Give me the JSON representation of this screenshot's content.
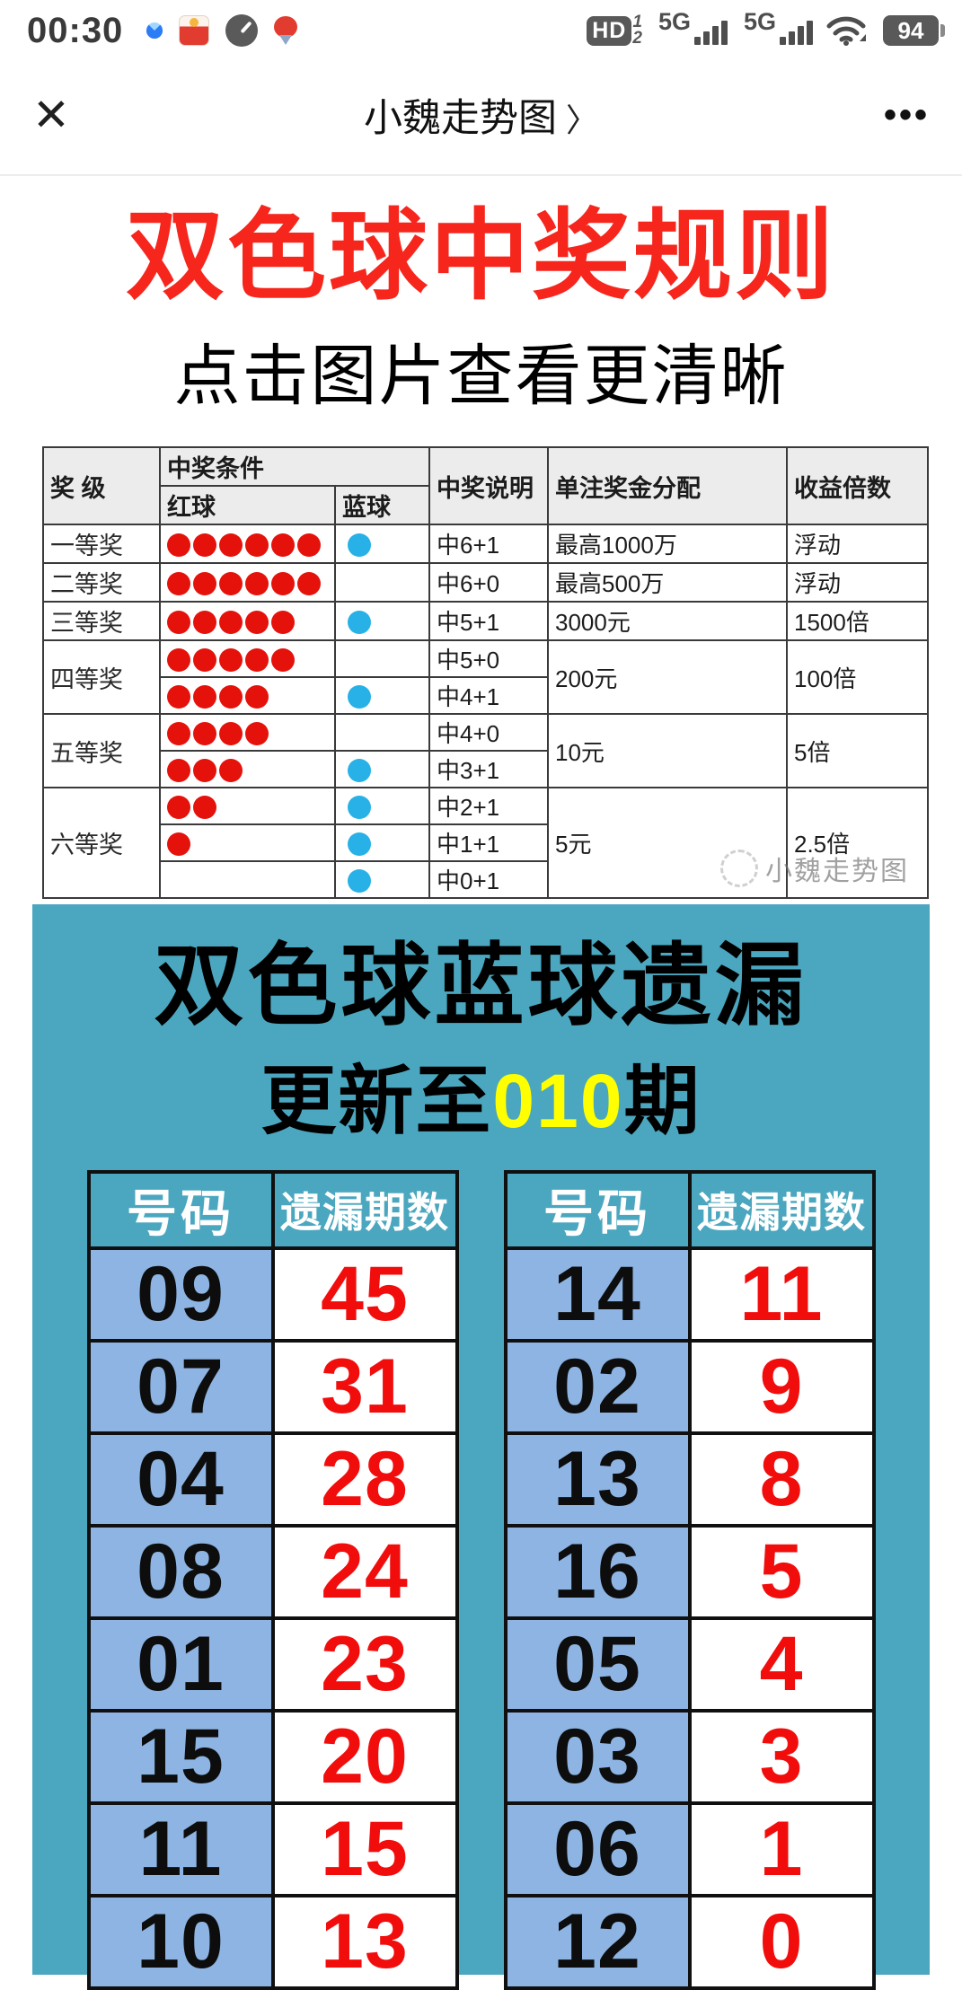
{
  "status_bar": {
    "time": "00:30",
    "hd": "HD",
    "sim_1": "1",
    "sim_2": "2",
    "network_a": "5G",
    "network_b": "5G",
    "battery": "94"
  },
  "nav": {
    "close": "✕",
    "title": "小魏走势图",
    "chevron": "〉",
    "more": "•••"
  },
  "article": {
    "title": "双色球中奖规则",
    "subtitle": "点击图片查看更清晰",
    "title_color": "#f6261d"
  },
  "rules_table": {
    "headers": {
      "grade": "奖 级",
      "condition": "中奖条件",
      "red": "红球",
      "blue": "蓝球",
      "desc": "中奖说明",
      "prize": "单注奖金分配",
      "multiple": "收益倍数"
    },
    "rows": [
      {
        "grade": "一等奖",
        "grade_span": 1,
        "red": 6,
        "blue": 1,
        "desc": "中6+1",
        "prize": "最高1000万",
        "prize_span": 1,
        "multiple": "浮动"
      },
      {
        "grade": "二等奖",
        "grade_span": 1,
        "red": 6,
        "blue": 0,
        "desc": "中6+0",
        "prize": "最高500万",
        "prize_span": 1,
        "multiple": "浮动"
      },
      {
        "grade": "三等奖",
        "grade_span": 1,
        "red": 5,
        "blue": 1,
        "desc": "中5+1",
        "prize": "3000元",
        "prize_span": 1,
        "multiple": "1500倍"
      },
      {
        "grade": "四等奖",
        "grade_span": 2,
        "red": 5,
        "blue": 0,
        "desc": "中5+0",
        "prize": "200元",
        "prize_span": 2,
        "multiple": "100倍"
      },
      {
        "red": 4,
        "blue": 1,
        "desc": "中4+1"
      },
      {
        "grade": "五等奖",
        "grade_span": 2,
        "red": 4,
        "blue": 0,
        "desc": "中4+0",
        "prize": "10元",
        "prize_span": 2,
        "multiple": "5倍"
      },
      {
        "red": 3,
        "blue": 1,
        "desc": "中3+1"
      },
      {
        "grade": "六等奖",
        "grade_span": 3,
        "red": 2,
        "blue": 1,
        "desc": "中2+1",
        "prize": "5元",
        "prize_span": 3,
        "multiple": "2.5倍"
      },
      {
        "red": 1,
        "blue": 1,
        "desc": "中1+1"
      },
      {
        "red": 0,
        "blue": 1,
        "desc": "中0+1"
      }
    ],
    "ball_colors": {
      "red": "#e5110b",
      "blue": "#27b1e6"
    },
    "watermark": "小魏走势图"
  },
  "miss_section": {
    "title": "双色球蓝球遗漏",
    "update_prefix": "更新至",
    "update_issue": "010",
    "update_suffix": "期",
    "col_number": "号码",
    "col_miss": "遗漏期数",
    "left_rows": [
      [
        "09",
        "45"
      ],
      [
        "07",
        "31"
      ],
      [
        "04",
        "28"
      ],
      [
        "08",
        "24"
      ],
      [
        "01",
        "23"
      ],
      [
        "15",
        "20"
      ],
      [
        "11",
        "15"
      ],
      [
        "10",
        "13"
      ]
    ],
    "right_rows": [
      [
        "14",
        "11"
      ],
      [
        "02",
        "9"
      ],
      [
        "13",
        "8"
      ],
      [
        "16",
        "5"
      ],
      [
        "05",
        "4"
      ],
      [
        "03",
        "3"
      ],
      [
        "06",
        "1"
      ],
      [
        "12",
        "0"
      ]
    ],
    "colors": {
      "background": "#4ba7bf",
      "number_cell_bg": "#8db4e2",
      "miss_value": "#f20d0d",
      "issue": "#ffff00"
    }
  }
}
